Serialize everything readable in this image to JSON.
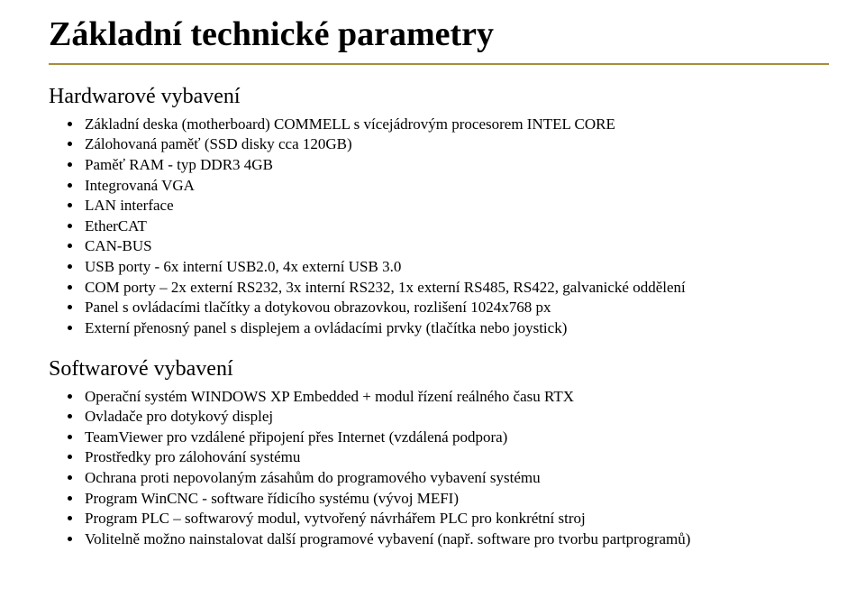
{
  "title": "Základní technické parametry",
  "accent_rule_color": "#a88c3c",
  "hw": {
    "heading": "Hardwarové vybavení",
    "items": [
      "Základní deska (motherboard)  COMMELL  s vícejádrovým procesorem INTEL CORE",
      "Zálohovaná paměť (SSD disky cca 120GB)",
      "Paměť RAM  - typ DDR3   4GB",
      "Integrovaná VGA",
      "LAN interface",
      "EtherCAT",
      "CAN-BUS",
      "USB porty -  6x interní  USB2.0, 4x externí USB 3.0",
      "COM porty – 2x externí RS232, 3x interní RS232,  1x externí RS485, RS422, galvanické oddělení",
      "Panel s ovládacími tlačítky a dotykovou obrazovkou, rozlišení 1024x768 px",
      "Externí přenosný panel s displejem a ovládacími prvky (tlačítka nebo joystick)"
    ]
  },
  "sw": {
    "heading": "Softwarové vybavení",
    "items": [
      "Operační systém WINDOWS XP Embedded + modul řízení reálného času RTX",
      "Ovladače pro dotykový displej",
      "TeamViewer pro vzdálené připojení přes Internet (vzdálená podpora)",
      "Prostředky pro zálohování systému",
      "Ochrana proti nepovolaným zásahům do programového vybavení systému",
      "Program WinCNC  - software řídicího systému  (vývoj MEFI)",
      "Program PLC – softwarový modul, vytvořený návrhářem PLC pro konkrétní stroj",
      "Volitelně možno nainstalovat další programové vybavení (např. software pro tvorbu partprogramů)"
    ]
  }
}
